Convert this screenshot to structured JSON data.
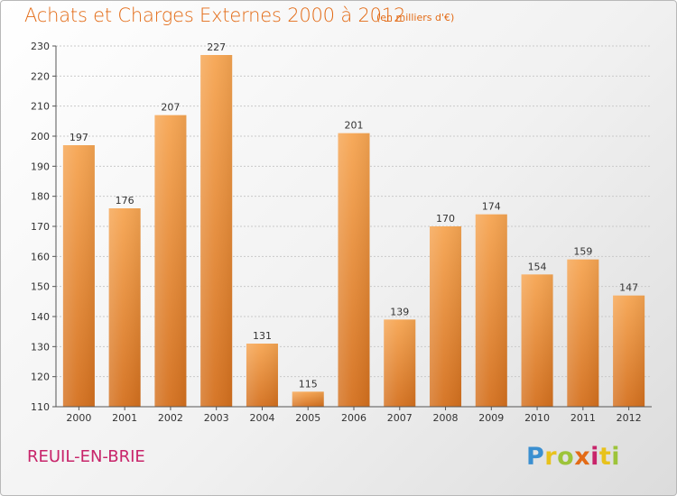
{
  "header": {
    "title": "Achats et Charges Externes 2000 à 2012",
    "subtitle": "(en milliers d'€)"
  },
  "footer": {
    "commune": "REUIL-EN-BRIE",
    "logo_text": "Proxiti"
  },
  "colors": {
    "title": "#e36b16",
    "bar_top": "#f6a552",
    "bar_bottom": "#d4701e",
    "commune": "#c8246a"
  },
  "chart_data": {
    "type": "bar",
    "title": "Achats et Charges Externes 2000 à 2012",
    "subtitle": "(en milliers d'€)",
    "categories": [
      "2000",
      "2001",
      "2002",
      "2003",
      "2004",
      "2005",
      "2006",
      "2007",
      "2008",
      "2009",
      "2010",
      "2011",
      "2012"
    ],
    "values": [
      197,
      176,
      207,
      227,
      131,
      115,
      201,
      139,
      170,
      174,
      154,
      159,
      147
    ],
    "ylim": [
      110,
      230
    ],
    "yticks": [
      110,
      120,
      130,
      140,
      150,
      160,
      170,
      180,
      190,
      200,
      210,
      220,
      230
    ],
    "grid": true,
    "data_labels": true
  }
}
